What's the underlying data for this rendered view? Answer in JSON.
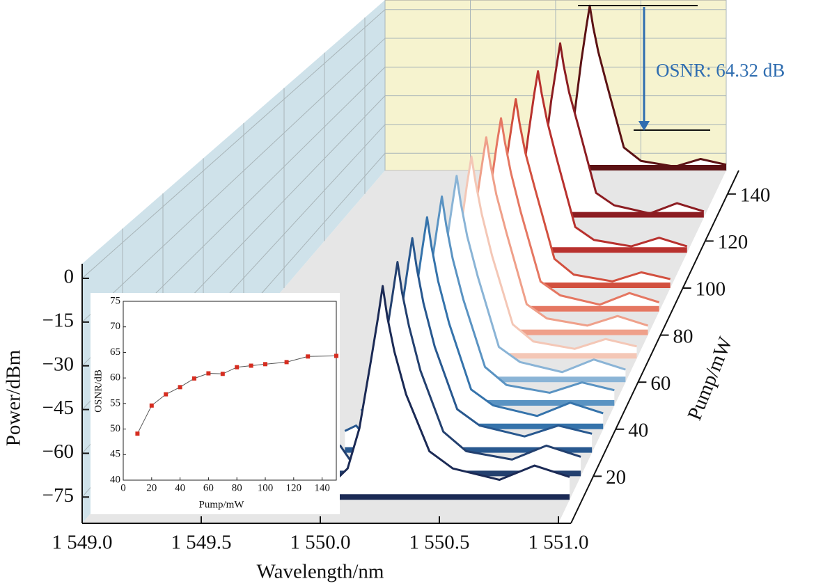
{
  "chart_data": [
    {
      "type": "waterfall",
      "x_label": "Wavelength/nm",
      "y_label": "Power/dBm",
      "z_label": "Pump/mW",
      "annotation": "OSNR: 64.32 dB",
      "xlim": [
        1549.0,
        1551.0
      ],
      "xticks": [
        {
          "value": 1549.0,
          "label": "1 549.0"
        },
        {
          "value": 1549.5,
          "label": "1 549.5"
        },
        {
          "value": 1550.0,
          "label": "1 550.0"
        },
        {
          "value": 1550.5,
          "label": "1 550.5"
        },
        {
          "value": 1551.0,
          "label": "1 551.0"
        }
      ],
      "ylim": [
        -84,
        5
      ],
      "yticks": [
        0,
        {
          "value": -15,
          "label": "−15"
        },
        {
          "value": -30,
          "label": "−30"
        },
        {
          "value": -45,
          "label": "−45"
        },
        {
          "value": -60,
          "label": "−60"
        },
        {
          "value": -75,
          "label": "−75"
        }
      ],
      "zlim": [
        0,
        150
      ],
      "zticks": [
        20,
        40,
        60,
        80,
        100,
        120,
        140
      ],
      "x": [
        1549.9,
        1549.95,
        1550.0,
        1550.05,
        1550.1,
        1550.15,
        1550.18,
        1550.2,
        1550.22,
        1550.25,
        1550.3,
        1550.4,
        1550.5,
        1550.7,
        1550.85,
        1551.0
      ],
      "series": [
        {
          "z": 10,
          "color": "#1b2a55",
          "values": [
            -75,
            -71,
            -77,
            -73,
            -59,
            -35,
            -20,
            -9,
            -20,
            -32,
            -47,
            -67,
            -73,
            -77,
            -72,
            -76
          ]
        },
        {
          "z": 20,
          "color": "#23406f",
          "values": [
            -76,
            -73,
            -79,
            -75,
            -60,
            -34,
            -18,
            -7,
            -18,
            -30,
            -46,
            -68,
            -75,
            -78,
            -73,
            -77
          ]
        },
        {
          "z": 30,
          "color": "#28588f",
          "values": [
            -76,
            -74,
            -79,
            -75,
            -59,
            -33,
            -16,
            -5,
            -16,
            -29,
            -45,
            -68,
            -74,
            -78,
            -74,
            -77
          ]
        },
        {
          "z": 40,
          "color": "#3573ab",
          "values": [
            -77,
            -74,
            -80,
            -76,
            -60,
            -32,
            -15,
            -4,
            -15,
            -28,
            -44,
            -69,
            -75,
            -79,
            -74,
            -78
          ]
        },
        {
          "z": 50,
          "color": "#5a93c2",
          "values": [
            -77,
            -75,
            -80,
            -76,
            -59,
            -31,
            -14,
            -3,
            -14,
            -27,
            -43,
            -69,
            -76,
            -79,
            -75,
            -78
          ]
        },
        {
          "z": 60,
          "color": "#8ab4d6",
          "values": [
            -78,
            -75,
            -81,
            -77,
            -60,
            -30,
            -13,
            -2,
            -13,
            -26,
            -42,
            -70,
            -76,
            -80,
            -75,
            -79
          ]
        },
        {
          "z": 70,
          "color": "#f4c7b6",
          "values": [
            -78,
            -76,
            -81,
            -77,
            -60,
            -30,
            -12,
            -1.5,
            -12,
            -25,
            -42,
            -70,
            -77,
            -80,
            -76,
            -79
          ]
        },
        {
          "z": 80,
          "color": "#efa08a",
          "values": [
            -78,
            -76,
            -81,
            -78,
            -61,
            -29,
            -12,
            -1,
            -12,
            -25,
            -41,
            -71,
            -77,
            -80,
            -76,
            -80
          ]
        },
        {
          "z": 90,
          "color": "#e57762",
          "values": [
            -79,
            -76,
            -82,
            -78,
            -61,
            -29,
            -11,
            -0.5,
            -11,
            -24,
            -41,
            -71,
            -77,
            -81,
            -76,
            -80
          ]
        },
        {
          "z": 100,
          "color": "#d2503f",
          "values": [
            -79,
            -77,
            -82,
            -78,
            -61,
            -28,
            -11,
            0,
            -11,
            -24,
            -40,
            -71,
            -78,
            -81,
            -77,
            -80
          ]
        },
        {
          "z": 115,
          "color": "#b8312e",
          "values": [
            -79,
            -77,
            -82,
            -79,
            -61,
            -28,
            -10,
            0.5,
            -10,
            -23,
            -40,
            -72,
            -78,
            -81,
            -77,
            -81
          ]
        },
        {
          "z": 130,
          "color": "#8c1d22",
          "values": [
            -80,
            -77,
            -83,
            -79,
            -62,
            -27,
            -10,
            1,
            -10,
            -23,
            -39,
            -72,
            -78,
            -82,
            -77,
            -81
          ]
        },
        {
          "z": 150,
          "color": "#5c1214",
          "values": [
            -80,
            -78,
            -83,
            -79,
            -62,
            -27,
            -9,
            2,
            -9,
            -22,
            -39,
            -72,
            -79,
            -82,
            -78,
            -81
          ]
        }
      ]
    },
    {
      "type": "line",
      "x_label": "Pump/mW",
      "y_label": "OSNR/dB",
      "x": [
        10,
        20,
        30,
        40,
        50,
        60,
        70,
        80,
        90,
        100,
        115,
        130,
        150
      ],
      "values": [
        49.1,
        54.6,
        56.8,
        58.2,
        59.9,
        60.9,
        60.8,
        62.1,
        62.4,
        62.7,
        63.1,
        64.2,
        64.32
      ],
      "color": "#d62d20",
      "line_color": "#555555",
      "xlim": [
        0,
        150
      ],
      "xticks": [
        0,
        20,
        40,
        60,
        80,
        100,
        120,
        140
      ],
      "ylim": [
        40,
        75
      ],
      "yticks": [
        40,
        45,
        50,
        55,
        60,
        65,
        70,
        75
      ]
    }
  ]
}
